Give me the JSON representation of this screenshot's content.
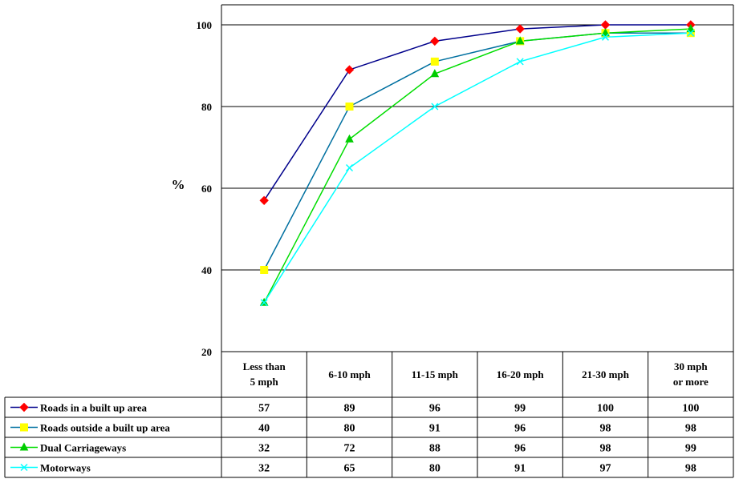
{
  "chart_data": {
    "type": "line",
    "title": "",
    "xlabel": "",
    "ylabel": "%",
    "ylim": [
      20,
      100
    ],
    "yticks": [
      "20",
      "40",
      "60",
      "80",
      "100"
    ],
    "grid": true,
    "legend": "data-table",
    "categories": [
      "Less than 5 mph",
      "6-10 mph",
      "11-15 mph",
      "16-20 mph",
      "21-30 mph",
      "30 mph or more"
    ],
    "series": [
      {
        "name": "Roads in a built up area",
        "color": "#00008B",
        "marker_color": "#FF0000",
        "marker": "diamond",
        "values": [
          57,
          89,
          96,
          99,
          100,
          100
        ]
      },
      {
        "name": "Roads outside a built up area",
        "color": "#0070A0",
        "marker_color": "#FFFF00",
        "marker": "square",
        "values": [
          40,
          80,
          91,
          96,
          98,
          98
        ]
      },
      {
        "name": "Dual Carriageways",
        "color": "#00DD00",
        "marker_color": "#00CC00",
        "marker": "triangle",
        "values": [
          32,
          72,
          88,
          96,
          98,
          99
        ]
      },
      {
        "name": "Motorways",
        "color": "#00FFFF",
        "marker_color": "#00FFFF",
        "marker": "x",
        "values": [
          32,
          65,
          80,
          91,
          97,
          98
        ]
      }
    ]
  }
}
